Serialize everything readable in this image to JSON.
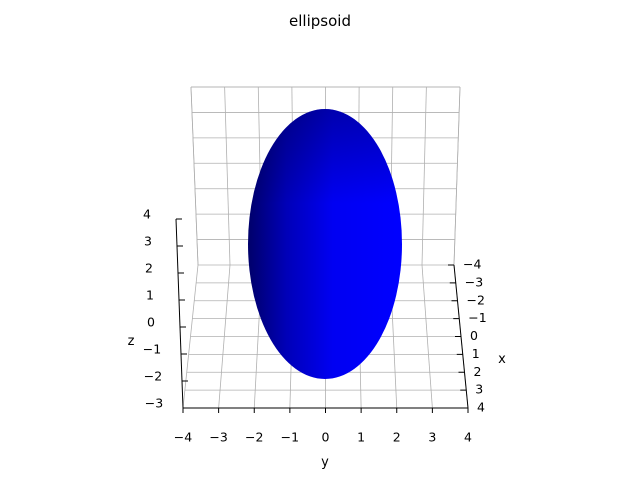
{
  "chart_data": {
    "type": "surface3d",
    "title": "ellipsoid",
    "surface": {
      "shape": "ellipsoid",
      "center": [
        0,
        0,
        0
      ],
      "semi_axes": {
        "x": 2,
        "y": 2,
        "z": 3
      },
      "color": "#0000ff"
    },
    "axes": {
      "x": {
        "label": "x",
        "lim": [
          -4,
          4
        ],
        "ticks": [
          -4,
          -3,
          -2,
          -1,
          0,
          1,
          2,
          3,
          4
        ],
        "tick_labels": [
          "−4",
          "−3",
          "−2",
          "−1",
          "0",
          "1",
          "2",
          "3",
          "4"
        ]
      },
      "y": {
        "label": "y",
        "lim": [
          -4,
          4
        ],
        "ticks": [
          -4,
          -3,
          -2,
          -1,
          0,
          1,
          2,
          3,
          4
        ],
        "tick_labels": [
          "−4",
          "−3",
          "−2",
          "−1",
          "0",
          "1",
          "2",
          "3",
          "4"
        ]
      },
      "z": {
        "label": "z",
        "lim": [
          -3,
          4
        ],
        "ticks": [
          -3,
          -2,
          -1,
          0,
          1,
          2,
          3,
          4
        ],
        "tick_labels": [
          "−3",
          "−2",
          "−1",
          "0",
          "1",
          "2",
          "3",
          "4"
        ]
      }
    },
    "grid": true,
    "colors": {
      "pane": "#ffffff",
      "grid": "#b0b0b0",
      "axis": "#000000"
    }
  }
}
